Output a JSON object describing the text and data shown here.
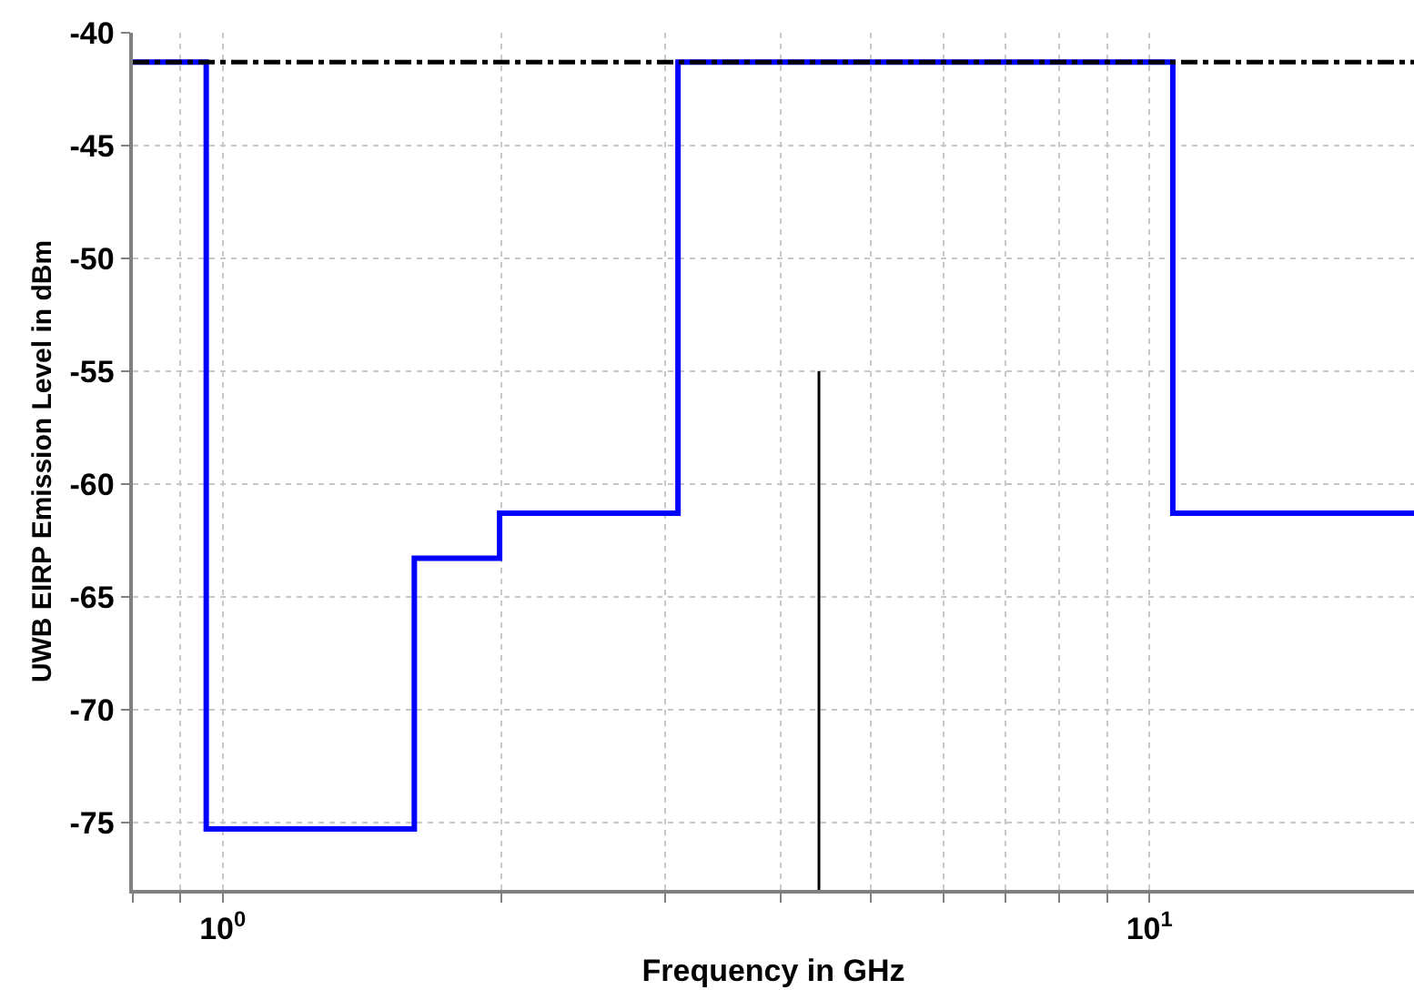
{
  "chart_data": {
    "type": "step",
    "xlabel": "Frequency in GHz",
    "ylabel": "UWB EIRP Emission Level in dBm",
    "log": "x",
    "grid": true,
    "line_style": "solid",
    "marker": "none",
    "xlim": [
      0.8,
      19.3
    ],
    "xticks": [
      {
        "value": 0.8,
        "label": null
      },
      {
        "value": 0.9,
        "label": null
      },
      {
        "value": 1,
        "label": "10$^{0}$"
      },
      {
        "value": 2,
        "label": null
      },
      {
        "value": 3,
        "label": null
      },
      {
        "value": 4,
        "label": null
      },
      {
        "value": 5,
        "label": null
      },
      {
        "value": 6,
        "label": null
      },
      {
        "value": 7,
        "label": null
      },
      {
        "value": 8,
        "label": null
      },
      {
        "value": 9,
        "label": null
      },
      {
        "value": 10,
        "label": "10$^{1}$"
      }
    ],
    "ylim": [
      -78,
      -40
    ],
    "yticks": [
      -75,
      -70,
      -65,
      -60,
      -55,
      -50,
      -45,
      -40
    ],
    "series": [
      {
        "color": "#0000ff",
        "x": [
          0.8,
          0.96,
          1.61,
          1.99,
          3.1,
          10.6,
          19.3
        ],
        "values": [
          -41.3,
          -75.3,
          -63.3,
          -61.3,
          -41.3,
          -61.3,
          -61.3
        ]
      },
      {
        "type": "line",
        "color": "#000000",
        "x": [
          4.4,
          4.4
        ],
        "values": [
          -55,
          -78
        ]
      }
    ],
    "ref_lines": [
      {
        "axis": "y",
        "value": -41.3,
        "color": "#000000",
        "line_style": "dashdot"
      }
    ]
  }
}
